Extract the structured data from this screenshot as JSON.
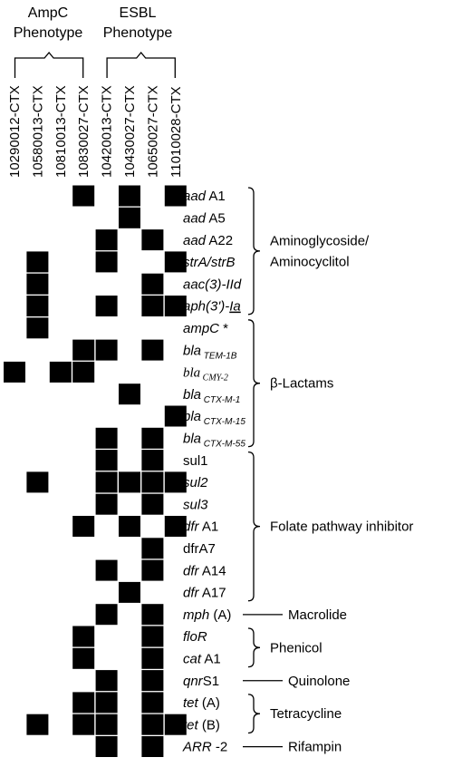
{
  "groups": [
    {
      "label_lines": [
        "AmpC",
        "Phenotype"
      ]
    },
    {
      "label_lines": [
        "ESBL",
        "Phenotype"
      ]
    }
  ],
  "isolates": [
    "10290012-CTX",
    "10580013-CTX",
    "10810013-CTX",
    "10830027-CTX",
    "10420013-CTX",
    "10430027-CTX",
    "10650027-CTX",
    "11010028-CTX"
  ],
  "genes": [
    {
      "parts": [
        {
          "t": "aad",
          "i": true
        },
        {
          "t": " A1"
        }
      ],
      "present": [
        3,
        5,
        7
      ]
    },
    {
      "parts": [
        {
          "t": "aad",
          "i": true
        },
        {
          "t": " A5"
        }
      ],
      "present": [
        5
      ]
    },
    {
      "parts": [
        {
          "t": "aad",
          "i": true
        },
        {
          "t": " A22"
        }
      ],
      "present": [
        4,
        6
      ]
    },
    {
      "parts": [
        {
          "t": "strA/strB",
          "i": true
        }
      ],
      "present": [
        1,
        4,
        7
      ]
    },
    {
      "parts": [
        {
          "t": "aac(3)-IId",
          "i": true
        }
      ],
      "present": [
        1,
        6
      ]
    },
    {
      "parts": [
        {
          "t": "aph(3')-",
          "i": true
        },
        {
          "t": "Ia",
          "i": true,
          "u": true
        }
      ],
      "present": [
        1,
        4,
        6,
        7
      ]
    },
    {
      "parts": [
        {
          "t": "ampC",
          "i": true
        },
        {
          "t": " *"
        }
      ],
      "present": [
        1
      ]
    },
    {
      "parts": [
        {
          "t": "bla",
          "i": true
        },
        {
          "t": " TEM-1B",
          "sub": true
        }
      ],
      "present": [
        3,
        4,
        6
      ]
    },
    {
      "parts": [
        {
          "t": "bla",
          "serif": true
        },
        {
          "t": " CMY-2",
          "sub": true,
          "serif": true
        }
      ],
      "present": [
        0,
        2,
        3
      ]
    },
    {
      "parts": [
        {
          "t": "bla",
          "i": true
        },
        {
          "t": " CTX-M-1",
          "sub": true
        }
      ],
      "present": [
        5
      ]
    },
    {
      "parts": [
        {
          "t": "bla",
          "i": true
        },
        {
          "t": " CTX-M-15",
          "sub": true
        }
      ],
      "present": [
        7
      ]
    },
    {
      "parts": [
        {
          "t": "bla",
          "i": true
        },
        {
          "t": " CTX-M-55",
          "sub": true
        }
      ],
      "present": [
        4,
        6
      ]
    },
    {
      "parts": [
        {
          "t": "sul1"
        }
      ],
      "present": [
        4,
        6
      ]
    },
    {
      "parts": [
        {
          "t": "sul2",
          "i": true
        }
      ],
      "present": [
        1,
        4,
        5,
        6,
        7
      ]
    },
    {
      "parts": [
        {
          "t": "sul3",
          "i": true
        }
      ],
      "present": [
        4,
        6
      ]
    },
    {
      "parts": [
        {
          "t": "dfr",
          "i": true
        },
        {
          "t": " A1"
        }
      ],
      "present": [
        3,
        5,
        7
      ]
    },
    {
      "parts": [
        {
          "t": "dfrA7"
        }
      ],
      "present": [
        6
      ]
    },
    {
      "parts": [
        {
          "t": "dfr",
          "i": true
        },
        {
          "t": " A14"
        }
      ],
      "present": [
        4,
        6
      ]
    },
    {
      "parts": [
        {
          "t": "dfr",
          "i": true
        },
        {
          "t": " A17"
        }
      ],
      "present": [
        5
      ]
    },
    {
      "parts": [
        {
          "t": "mph",
          "i": true
        },
        {
          "t": " (A)"
        }
      ],
      "present": [
        4,
        6
      ]
    },
    {
      "parts": [
        {
          "t": "floR",
          "i": true
        }
      ],
      "present": [
        3,
        6
      ]
    },
    {
      "parts": [
        {
          "t": "cat",
          "i": true
        },
        {
          "t": " A1"
        }
      ],
      "present": [
        3,
        6
      ]
    },
    {
      "parts": [
        {
          "t": "qnr",
          "i": true
        },
        {
          "t": "S1"
        }
      ],
      "present": [
        4,
        6
      ]
    },
    {
      "parts": [
        {
          "t": "tet",
          "i": true
        },
        {
          "t": " (A)"
        }
      ],
      "present": [
        3,
        4,
        6
      ]
    },
    {
      "parts": [
        {
          "t": "tet",
          "i": true
        },
        {
          "t": " (B)"
        }
      ],
      "present": [
        1,
        3,
        4,
        6,
        7
      ]
    },
    {
      "parts": [
        {
          "t": "ARR",
          "i": true
        },
        {
          "t": " -2"
        }
      ],
      "present": [
        4,
        6
      ]
    }
  ],
  "classes": [
    {
      "label_lines": [
        "Aminoglycoside/",
        "Aminocyclitol"
      ],
      "rows": [
        0,
        5
      ],
      "style": "brace"
    },
    {
      "label_lines": [
        "β-Lactams"
      ],
      "rows": [
        6,
        11
      ],
      "style": "brace"
    },
    {
      "label_lines": [
        "Folate pathway inhibitor"
      ],
      "rows": [
        12,
        18
      ],
      "style": "brace"
    },
    {
      "label_lines": [
        "Macrolide"
      ],
      "rows": [
        19,
        19
      ],
      "style": "line"
    },
    {
      "label_lines": [
        "Phenicol"
      ],
      "rows": [
        20,
        21
      ],
      "style": "brace"
    },
    {
      "label_lines": [
        "Quinolone"
      ],
      "rows": [
        22,
        22
      ],
      "style": "line"
    },
    {
      "label_lines": [
        "Tetracycline"
      ],
      "rows": [
        23,
        24
      ],
      "style": "brace"
    },
    {
      "label_lines": [
        "Rifampin"
      ],
      "rows": [
        25,
        25
      ],
      "style": "line"
    }
  ],
  "colors": {
    "cell": "#000000",
    "text": "#000000",
    "background": "#ffffff"
  }
}
